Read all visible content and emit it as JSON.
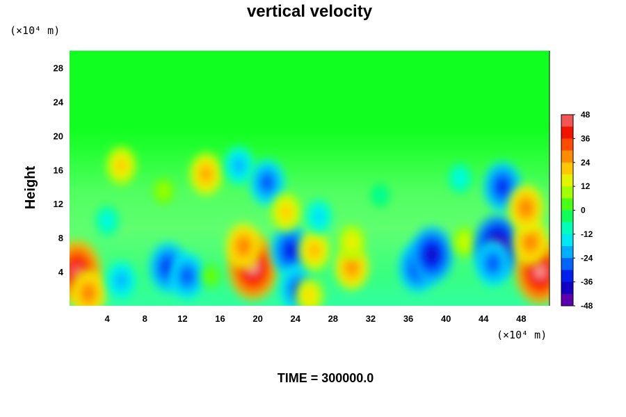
{
  "chart_data": {
    "type": "heatmap",
    "title": "vertical velocity",
    "xlabel": "",
    "ylabel": "Height",
    "x_unit": "(×10⁴ m)",
    "y_unit": "(×10⁴ m)",
    "xlim": [
      0,
      51
    ],
    "ylim": [
      0,
      30
    ],
    "xticks": [
      4,
      8,
      12,
      16,
      20,
      24,
      28,
      32,
      36,
      40,
      44,
      48
    ],
    "yticks": [
      4,
      8,
      12,
      16,
      20,
      24,
      28
    ],
    "colorbar": {
      "ticks": [
        48,
        36,
        24,
        12,
        0,
        -12,
        -24,
        -36,
        -48
      ],
      "range": [
        -48,
        48
      ]
    },
    "footer": "TIME = 300000.0",
    "features": [
      {
        "x": 0.8,
        "y": 4.0,
        "value": 46
      },
      {
        "x": 2.0,
        "y": 1.5,
        "value": 30
      },
      {
        "x": 5.5,
        "y": 3.0,
        "value": -22
      },
      {
        "x": 10.5,
        "y": 4.5,
        "value": -34
      },
      {
        "x": 12.5,
        "y": 3.5,
        "value": -30
      },
      {
        "x": 15.0,
        "y": 3.5,
        "value": 6
      },
      {
        "x": 19.5,
        "y": 4.5,
        "value": 48
      },
      {
        "x": 18.5,
        "y": 7.0,
        "value": 30
      },
      {
        "x": 23.5,
        "y": 6.5,
        "value": -36
      },
      {
        "x": 24.2,
        "y": 2.0,
        "value": -30
      },
      {
        "x": 26.0,
        "y": 6.5,
        "value": 24
      },
      {
        "x": 25.5,
        "y": 1.2,
        "value": 20
      },
      {
        "x": 30.0,
        "y": 4.5,
        "value": 28
      },
      {
        "x": 30.0,
        "y": 7.5,
        "value": 18
      },
      {
        "x": 37.0,
        "y": 4.5,
        "value": -34
      },
      {
        "x": 38.5,
        "y": 6.0,
        "value": -40
      },
      {
        "x": 42.0,
        "y": 7.5,
        "value": 14
      },
      {
        "x": 45.5,
        "y": 7.0,
        "value": -46
      },
      {
        "x": 45.0,
        "y": 5.0,
        "value": -30
      },
      {
        "x": 50.0,
        "y": 4.0,
        "value": 48
      },
      {
        "x": 49.0,
        "y": 7.5,
        "value": 30
      },
      {
        "x": 5.5,
        "y": 16.5,
        "value": 22
      },
      {
        "x": 14.5,
        "y": 15.5,
        "value": 26
      },
      {
        "x": 18.0,
        "y": 16.5,
        "value": -22
      },
      {
        "x": 21.0,
        "y": 14.5,
        "value": -30
      },
      {
        "x": 23.0,
        "y": 11.0,
        "value": 22
      },
      {
        "x": 46.0,
        "y": 14.0,
        "value": -34
      },
      {
        "x": 48.5,
        "y": 11.5,
        "value": 30
      },
      {
        "x": 4.0,
        "y": 10.0,
        "value": -14
      },
      {
        "x": 26.5,
        "y": 10.5,
        "value": -18
      },
      {
        "x": 41.5,
        "y": 15.0,
        "value": -14
      },
      {
        "x": 10.0,
        "y": 13.5,
        "value": 10
      },
      {
        "x": 33.0,
        "y": 13.0,
        "value": -8
      }
    ]
  }
}
